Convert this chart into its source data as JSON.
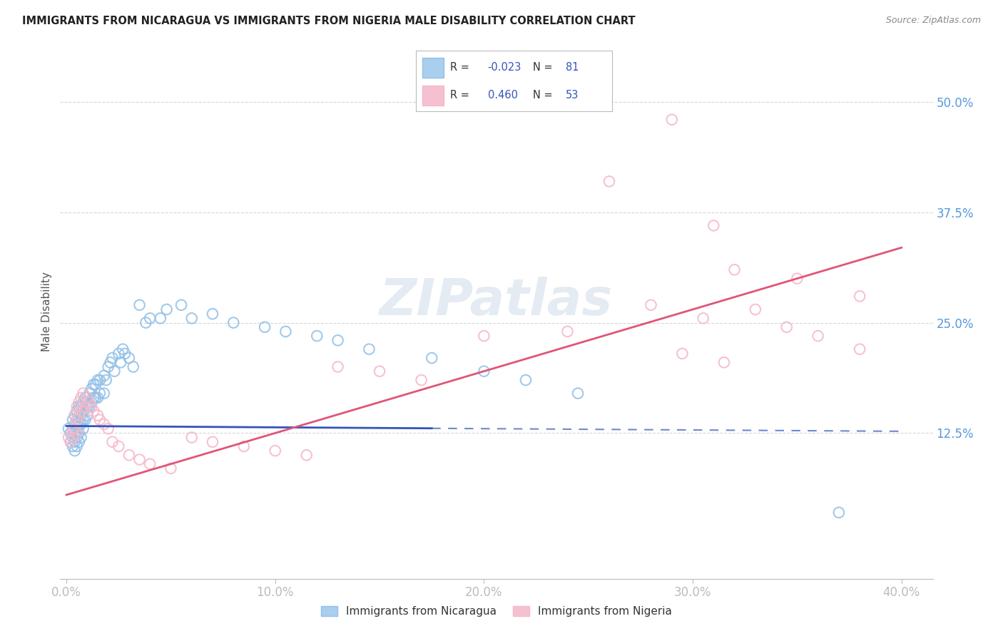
{
  "title": "IMMIGRANTS FROM NICARAGUA VS IMMIGRANTS FROM NIGERIA MALE DISABILITY CORRELATION CHART",
  "source": "Source: ZipAtlas.com",
  "ylabel": "Male Disability",
  "ytick_labels": [
    "50.0%",
    "37.5%",
    "25.0%",
    "12.5%"
  ],
  "ytick_values": [
    0.5,
    0.375,
    0.25,
    0.125
  ],
  "xtick_values": [
    0.0,
    0.1,
    0.2,
    0.3,
    0.4
  ],
  "xtick_labels": [
    "0.0%",
    "10.0%",
    "20.0%",
    "30.0%",
    "40.0%"
  ],
  "xlim": [
    -0.003,
    0.415
  ],
  "ylim": [
    -0.04,
    0.565
  ],
  "nicaragua_R": -0.023,
  "nicaragua_N": 81,
  "nigeria_R": 0.46,
  "nigeria_N": 53,
  "nicaragua_color": "#92c0e8",
  "nigeria_color": "#f5b8c8",
  "nicaragua_line_color": "#3355bb",
  "nigeria_line_color": "#e05575",
  "nicaragua_line_solid_end": 0.175,
  "nicaragua_line_y0": 0.133,
  "nicaragua_line_y1": 0.127,
  "nigeria_line_y0": 0.055,
  "nigeria_line_y1": 0.335,
  "watermark_text": "ZIPatlas",
  "background_color": "#ffffff",
  "legend_nic_color": "#aacfee",
  "legend_nig_color": "#f5c0d0",
  "nicaragua_x": [
    0.001,
    0.002,
    0.002,
    0.003,
    0.003,
    0.003,
    0.003,
    0.004,
    0.004,
    0.004,
    0.004,
    0.004,
    0.005,
    0.005,
    0.005,
    0.005,
    0.005,
    0.005,
    0.006,
    0.006,
    0.006,
    0.006,
    0.006,
    0.007,
    0.007,
    0.007,
    0.007,
    0.008,
    0.008,
    0.008,
    0.008,
    0.009,
    0.009,
    0.009,
    0.01,
    0.01,
    0.01,
    0.011,
    0.011,
    0.012,
    0.012,
    0.013,
    0.013,
    0.014,
    0.014,
    0.015,
    0.015,
    0.016,
    0.016,
    0.018,
    0.018,
    0.019,
    0.02,
    0.021,
    0.022,
    0.023,
    0.025,
    0.026,
    0.027,
    0.028,
    0.03,
    0.032,
    0.035,
    0.038,
    0.04,
    0.045,
    0.048,
    0.055,
    0.06,
    0.07,
    0.08,
    0.095,
    0.105,
    0.12,
    0.13,
    0.145,
    0.175,
    0.2,
    0.22,
    0.245,
    0.37
  ],
  "nicaragua_y": [
    0.13,
    0.125,
    0.115,
    0.14,
    0.13,
    0.12,
    0.11,
    0.145,
    0.135,
    0.125,
    0.115,
    0.105,
    0.15,
    0.14,
    0.135,
    0.125,
    0.12,
    0.11,
    0.155,
    0.145,
    0.135,
    0.125,
    0.115,
    0.155,
    0.145,
    0.135,
    0.12,
    0.16,
    0.15,
    0.14,
    0.13,
    0.165,
    0.155,
    0.14,
    0.165,
    0.155,
    0.145,
    0.17,
    0.155,
    0.175,
    0.16,
    0.18,
    0.165,
    0.18,
    0.165,
    0.185,
    0.165,
    0.185,
    0.17,
    0.19,
    0.17,
    0.185,
    0.2,
    0.205,
    0.21,
    0.195,
    0.215,
    0.205,
    0.22,
    0.215,
    0.21,
    0.2,
    0.27,
    0.25,
    0.255,
    0.255,
    0.265,
    0.27,
    0.255,
    0.26,
    0.25,
    0.245,
    0.24,
    0.235,
    0.23,
    0.22,
    0.21,
    0.195,
    0.185,
    0.17,
    0.035
  ],
  "nigeria_x": [
    0.001,
    0.002,
    0.003,
    0.003,
    0.004,
    0.004,
    0.005,
    0.005,
    0.005,
    0.006,
    0.006,
    0.007,
    0.007,
    0.008,
    0.009,
    0.01,
    0.011,
    0.012,
    0.013,
    0.015,
    0.016,
    0.018,
    0.02,
    0.022,
    0.025,
    0.03,
    0.035,
    0.04,
    0.05,
    0.06,
    0.07,
    0.085,
    0.1,
    0.115,
    0.13,
    0.15,
    0.17,
    0.2,
    0.24,
    0.28,
    0.32,
    0.35,
    0.38,
    0.31,
    0.29,
    0.26,
    0.33,
    0.305,
    0.345,
    0.36,
    0.38,
    0.295,
    0.315
  ],
  "nigeria_y": [
    0.12,
    0.115,
    0.13,
    0.12,
    0.145,
    0.13,
    0.155,
    0.14,
    0.125,
    0.16,
    0.145,
    0.165,
    0.15,
    0.17,
    0.155,
    0.165,
    0.16,
    0.155,
    0.15,
    0.145,
    0.14,
    0.135,
    0.13,
    0.115,
    0.11,
    0.1,
    0.095,
    0.09,
    0.085,
    0.12,
    0.115,
    0.11,
    0.105,
    0.1,
    0.2,
    0.195,
    0.185,
    0.235,
    0.24,
    0.27,
    0.31,
    0.3,
    0.28,
    0.36,
    0.48,
    0.41,
    0.265,
    0.255,
    0.245,
    0.235,
    0.22,
    0.215,
    0.205
  ]
}
